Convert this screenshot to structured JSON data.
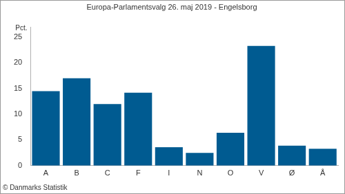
{
  "chart_data": {
    "type": "bar",
    "title": "Europa-Parlamentsvalg 26. maj 2019 - Engelsborg",
    "ylabel": "Pct.",
    "source": "© Danmarks Statistik",
    "categories": [
      "A",
      "B",
      "C",
      "F",
      "I",
      "N",
      "O",
      "V",
      "Ø",
      "Å"
    ],
    "values": [
      14.5,
      17.0,
      12.0,
      14.2,
      3.6,
      2.5,
      6.4,
      23.3,
      3.9,
      3.3
    ],
    "color": "#005b91",
    "ylim": [
      0,
      27
    ],
    "yticks": [
      0,
      5,
      10,
      15,
      20,
      25
    ],
    "grid": false
  }
}
